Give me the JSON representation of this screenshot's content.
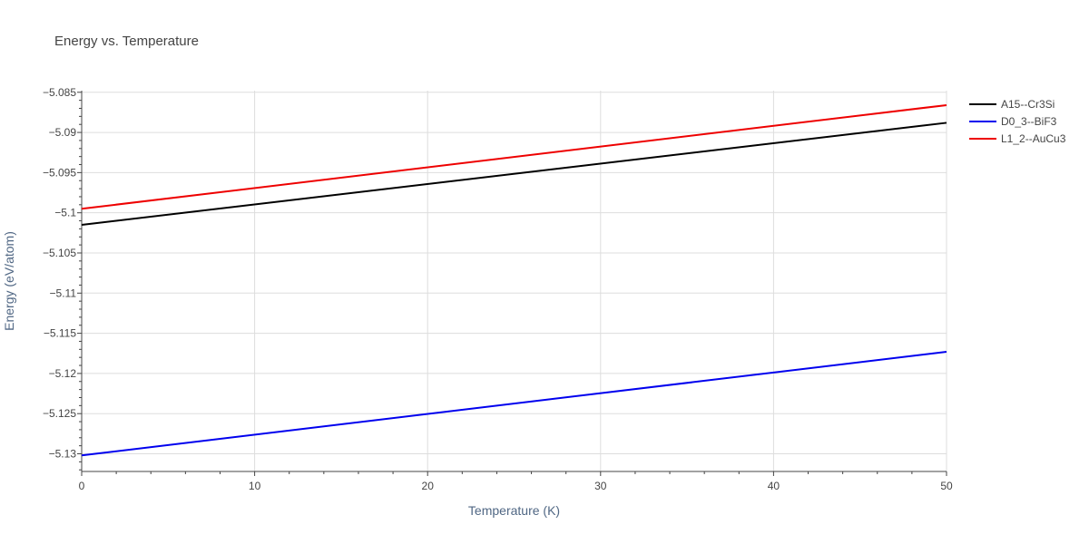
{
  "chart_data": {
    "type": "line",
    "title": "Energy vs. Temperature",
    "xlabel": "Temperature (K)",
    "ylabel": "Energy (eV/atom)",
    "xlim": [
      0,
      50
    ],
    "ylim": [
      -5.1322,
      -5.0848
    ],
    "x_ticks": [
      0,
      10,
      20,
      30,
      40,
      50
    ],
    "x_tick_labels": [
      "0",
      "10",
      "20",
      "30",
      "40",
      "50"
    ],
    "y_ticks": [
      -5.085,
      -5.09,
      -5.095,
      -5.1,
      -5.105,
      -5.11,
      -5.115,
      -5.12,
      -5.125,
      -5.13
    ],
    "y_tick_labels": [
      "−5.085",
      "−5.09",
      "−5.095",
      "−5.1",
      "−5.105",
      "−5.11",
      "−5.115",
      "−5.12",
      "−5.125",
      "−5.13"
    ],
    "grid": true,
    "legend_position": "top-right",
    "series": [
      {
        "name": "A15--Cr3Si",
        "color": "#000000",
        "x": [
          0,
          50
        ],
        "y": [
          -5.1015,
          -5.0888
        ]
      },
      {
        "name": "D0_3--BiF3",
        "color": "#0000ee",
        "x": [
          0,
          50
        ],
        "y": [
          -5.1302,
          -5.1173
        ]
      },
      {
        "name": "L1_2--AuCu3",
        "color": "#ee0000",
        "x": [
          0,
          50
        ],
        "y": [
          -5.0995,
          -5.0866
        ]
      }
    ]
  }
}
